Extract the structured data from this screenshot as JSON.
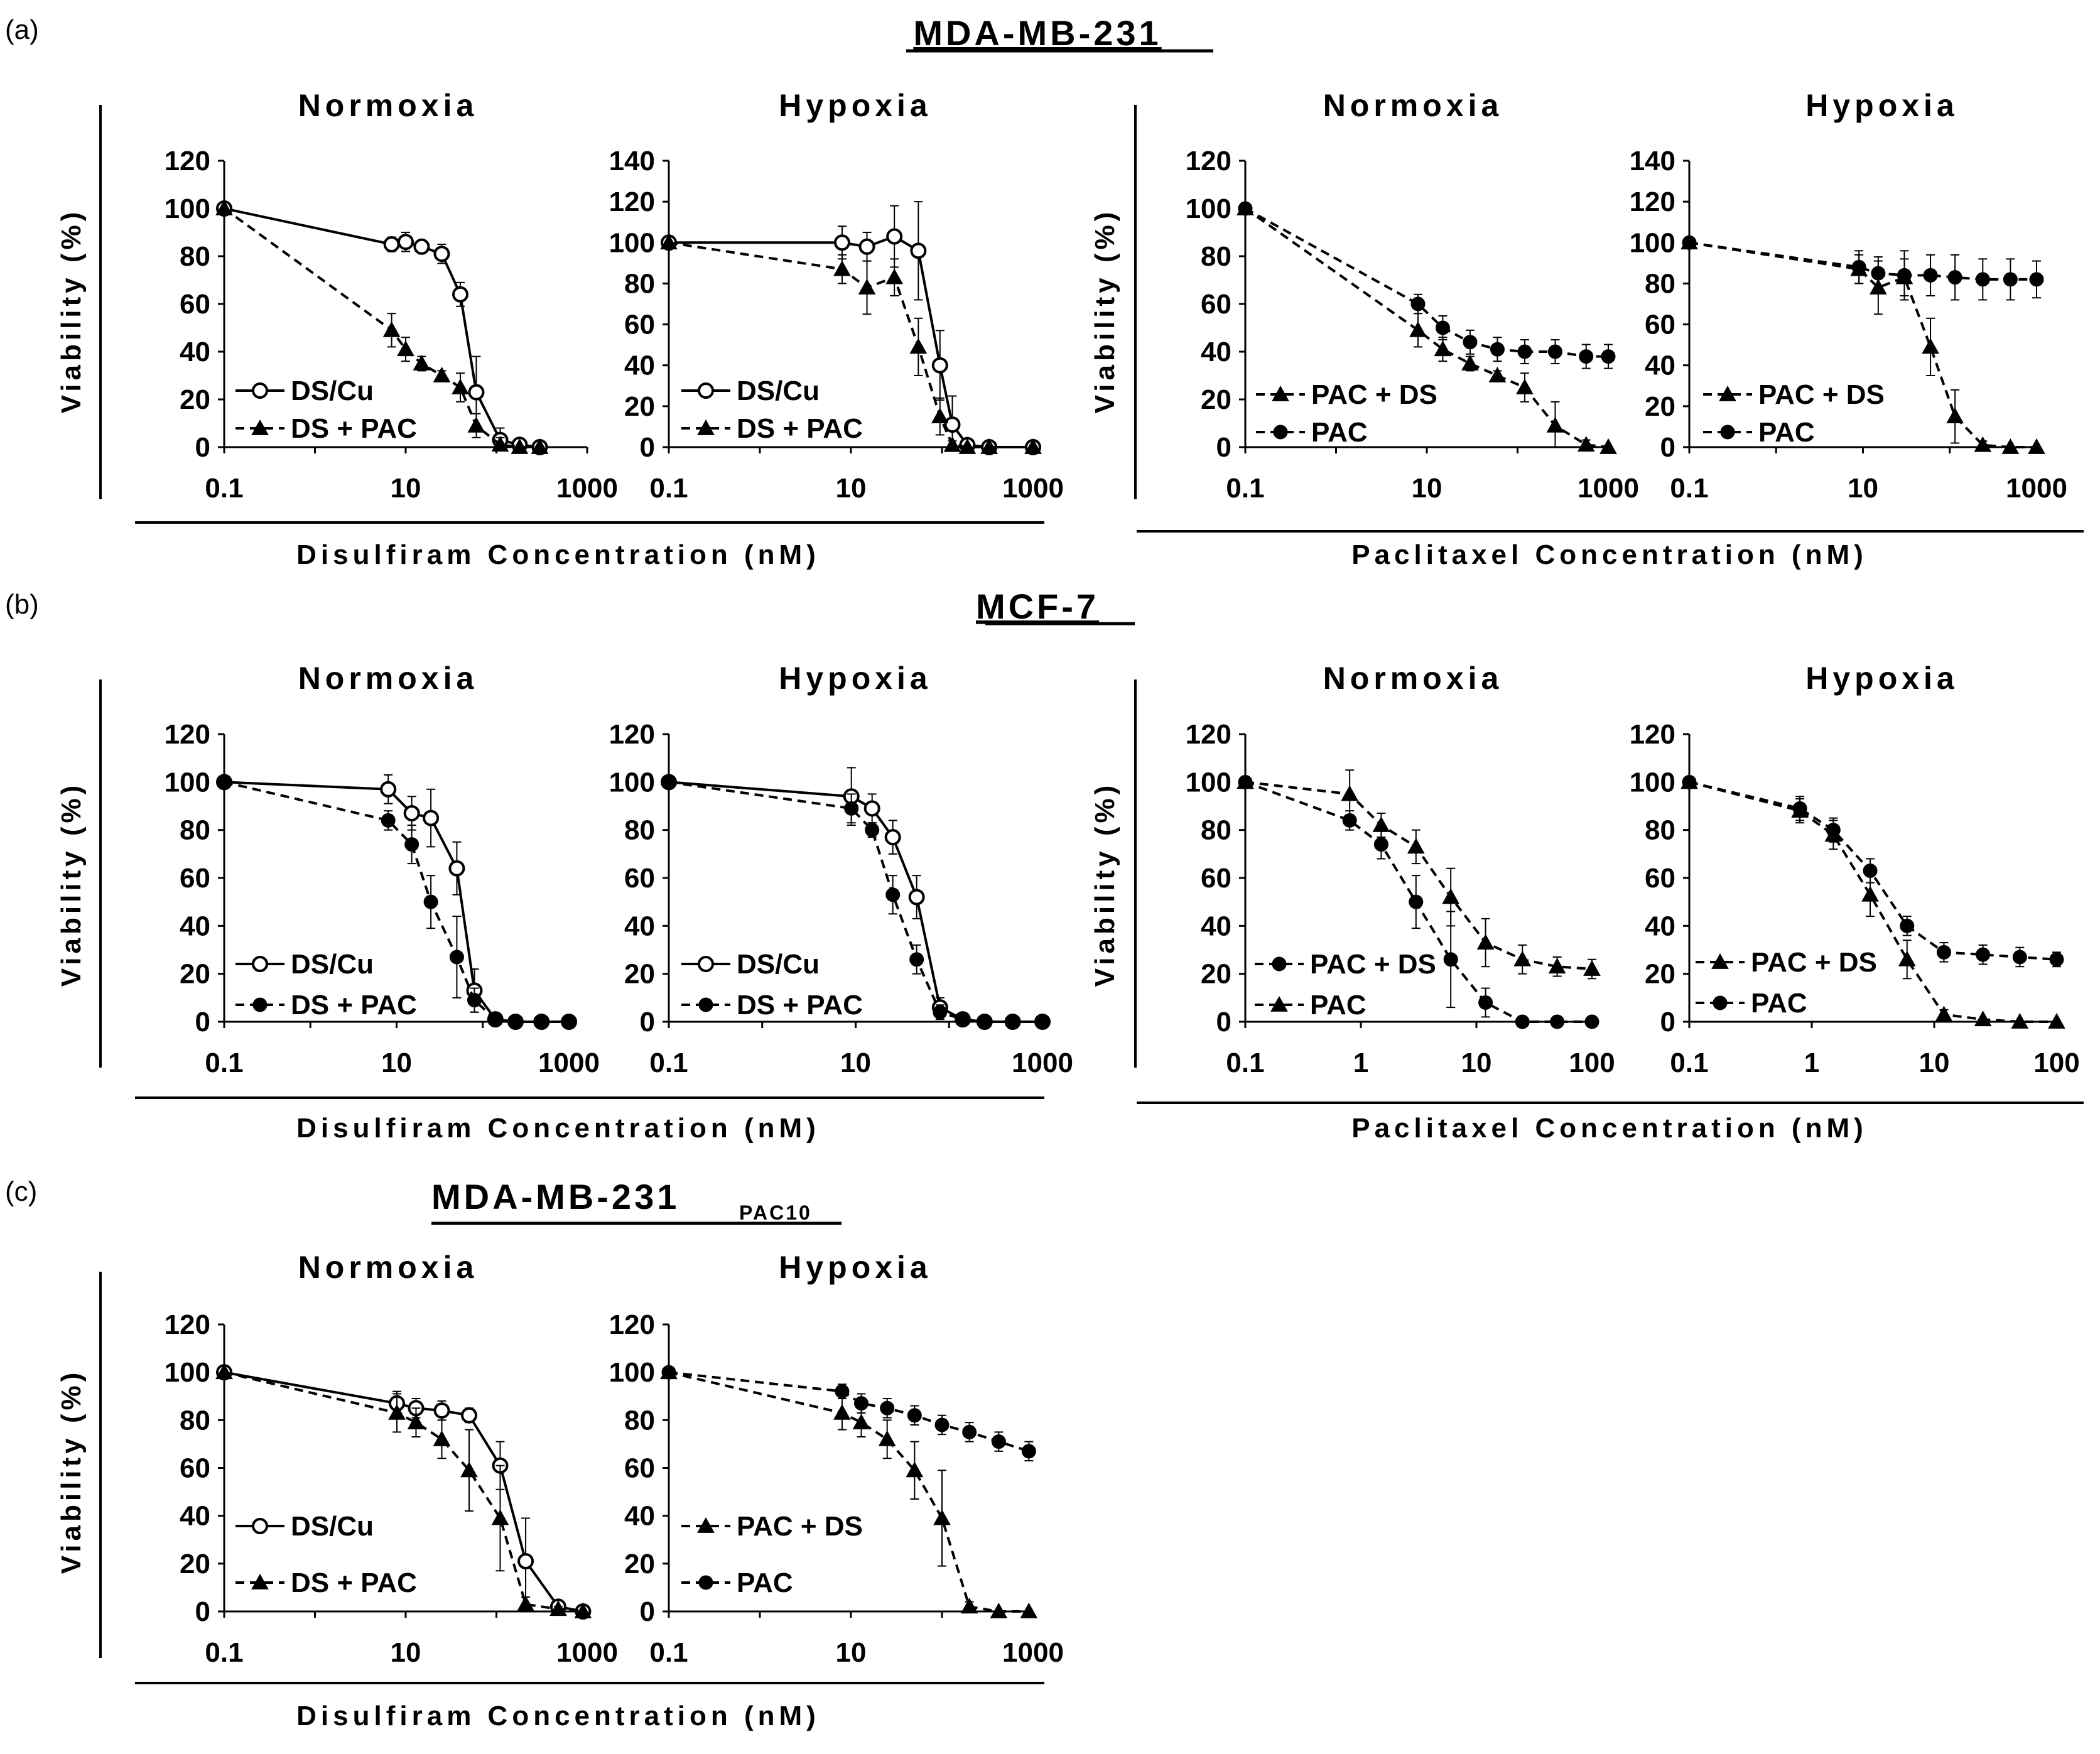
{
  "figure": {
    "labels": {
      "a": "(a)",
      "b": "(b)",
      "c": "(c)"
    },
    "rows": {
      "a": {
        "title": "MDA-MB-231",
        "subscript": ""
      },
      "b": {
        "title": "MCF-7",
        "subscript": ""
      },
      "c": {
        "title": "MDA-MB-231",
        "subscript": "PAC10"
      }
    },
    "y_axis_label": "Viability (%)",
    "x_axis_labels": {
      "ds": "Disulfiram Concentration (nM)",
      "pac": "Paclitaxel Concentration (nM)"
    },
    "conditions": {
      "normoxia": "Normoxia",
      "hypoxia": "Hypoxia"
    },
    "colors": {
      "ink": "#000000",
      "background": "#ffffff"
    }
  },
  "chart_data": [
    {
      "id": "a1",
      "type": "line",
      "title": "Normoxia",
      "xscale": "log",
      "xlim": [
        0.1,
        1000
      ],
      "xticks": [
        0.1,
        10,
        1000
      ],
      "xticklabels": [
        "0.1",
        "10",
        "1000"
      ],
      "ylim": [
        0,
        120
      ],
      "yticks": [
        0,
        20,
        40,
        60,
        80,
        100,
        120
      ],
      "series": [
        {
          "name": "DS/Cu",
          "marker": "open-circle",
          "dash": "solid",
          "x": [
            0.1,
            7,
            10,
            15,
            25,
            40,
            60,
            110,
            180,
            300
          ],
          "y": [
            100,
            85,
            86,
            84,
            81,
            64,
            23,
            3,
            1,
            0
          ],
          "err": [
            0,
            3,
            4,
            2,
            4,
            5,
            15,
            5,
            2,
            0
          ]
        },
        {
          "name": "DS + PAC",
          "marker": "filled-triangle",
          "dash": "dashed",
          "x": [
            0.1,
            7,
            10,
            15,
            25,
            40,
            60,
            110,
            180,
            300
          ],
          "y": [
            100,
            49,
            41,
            35,
            30,
            25,
            9,
            1,
            0,
            0
          ],
          "err": [
            0,
            7,
            5,
            3,
            2,
            6,
            5,
            3,
            0,
            0
          ]
        }
      ]
    },
    {
      "id": "a2",
      "type": "line",
      "title": "Hypoxia",
      "xscale": "log",
      "xlim": [
        0.1,
        1000
      ],
      "xticks": [
        0.1,
        10,
        1000
      ],
      "xticklabels": [
        "0.1",
        "10",
        "1000"
      ],
      "ylim": [
        0,
        140
      ],
      "yticks": [
        0,
        20,
        40,
        60,
        80,
        100,
        120,
        140
      ],
      "series": [
        {
          "name": "DS/Cu",
          "marker": "open-circle",
          "dash": "solid",
          "x": [
            0.1,
            8,
            15,
            30,
            55,
            95,
            130,
            190,
            330,
            1000
          ],
          "y": [
            100,
            100,
            98,
            103,
            96,
            40,
            11,
            1,
            0,
            0
          ],
          "err": [
            0,
            8,
            7,
            15,
            24,
            17,
            14,
            2,
            0,
            0
          ]
        },
        {
          "name": "DS + PAC",
          "marker": "filled-triangle",
          "dash": "dashed",
          "x": [
            0.1,
            8,
            15,
            30,
            55,
            95,
            130,
            190,
            330,
            1000
          ],
          "y": [
            100,
            87,
            78,
            83,
            49,
            15,
            1,
            0,
            0,
            0
          ],
          "err": [
            0,
            7,
            13,
            9,
            14,
            9,
            2,
            0,
            0,
            0
          ]
        }
      ]
    },
    {
      "id": "a3",
      "type": "line",
      "title": "Normoxia",
      "xscale": "log",
      "xlim": [
        0.1,
        1000
      ],
      "xticks": [
        0.1,
        10,
        1000
      ],
      "xticklabels": [
        "0.1",
        "10",
        "1000"
      ],
      "ylim": [
        0,
        120
      ],
      "yticks": [
        0,
        20,
        40,
        60,
        80,
        100,
        120
      ],
      "series": [
        {
          "name": "PAC + DS",
          "marker": "filled-triangle",
          "dash": "dashed",
          "x": [
            0.1,
            8,
            15,
            30,
            60,
            120,
            260,
            570,
            1000
          ],
          "y": [
            100,
            49,
            41,
            35,
            30,
            25,
            9,
            1,
            0
          ],
          "err": [
            0,
            7,
            5,
            3,
            2,
            6,
            10,
            2,
            0
          ]
        },
        {
          "name": "PAC",
          "marker": "filled-circle",
          "dash": "dashed",
          "x": [
            0.1,
            8,
            15,
            30,
            60,
            120,
            260,
            570,
            1000
          ],
          "y": [
            100,
            60,
            50,
            44,
            41,
            40,
            40,
            38,
            38
          ],
          "err": [
            0,
            4,
            5,
            5,
            5,
            5,
            5,
            5,
            5
          ]
        }
      ]
    },
    {
      "id": "a4",
      "type": "line",
      "title": "Hypoxia",
      "xscale": "log",
      "xlim": [
        0.1,
        1000
      ],
      "xticks": [
        0.1,
        10,
        1000
      ],
      "xticklabels": [
        "0.1",
        "10",
        "1000"
      ],
      "ylim": [
        0,
        140
      ],
      "yticks": [
        0,
        20,
        40,
        60,
        80,
        100,
        120,
        140
      ],
      "series": [
        {
          "name": "PAC + DS",
          "marker": "filled-triangle",
          "dash": "dashed",
          "x": [
            0.1,
            9,
            15,
            30,
            60,
            115,
            240,
            500,
            1000
          ],
          "y": [
            100,
            87,
            78,
            83,
            49,
            15,
            1,
            0,
            0
          ],
          "err": [
            0,
            7,
            13,
            9,
            14,
            13,
            2,
            0,
            0
          ]
        },
        {
          "name": "PAC",
          "marker": "filled-circle",
          "dash": "dashed",
          "x": [
            0.1,
            9,
            15,
            30,
            60,
            115,
            240,
            500,
            1000
          ],
          "y": [
            100,
            88,
            85,
            84,
            84,
            83,
            82,
            82,
            82
          ],
          "err": [
            0,
            8,
            8,
            12,
            10,
            11,
            10,
            10,
            9
          ]
        }
      ]
    },
    {
      "id": "b1",
      "type": "line",
      "title": "Normoxia",
      "xscale": "log",
      "xlim": [
        0.1,
        1000
      ],
      "xticks": [
        0.1,
        10,
        1000
      ],
      "xticklabels": [
        "0.1",
        "10",
        "1000"
      ],
      "ylim": [
        0,
        120
      ],
      "yticks": [
        0,
        20,
        40,
        60,
        80,
        100,
        120
      ],
      "series": [
        {
          "name": "DS/Cu",
          "marker": "open-circle",
          "dash": "solid",
          "x": [
            0.1,
            8,
            15,
            25,
            50,
            80,
            140,
            240,
            480,
            1000
          ],
          "y": [
            100,
            97,
            87,
            85,
            64,
            13,
            1,
            0,
            0,
            0
          ],
          "err": [
            0,
            6,
            7,
            12,
            11,
            9,
            2,
            0,
            0,
            0
          ]
        },
        {
          "name": "DS + PAC",
          "marker": "filled-circle",
          "dash": "dashed",
          "x": [
            0.1,
            8,
            15,
            25,
            50,
            80,
            140,
            240,
            480,
            1000
          ],
          "y": [
            100,
            84,
            74,
            50,
            27,
            9,
            1,
            0,
            0,
            0
          ],
          "err": [
            0,
            4,
            8,
            11,
            17,
            5,
            1,
            0,
            0,
            0
          ]
        }
      ]
    },
    {
      "id": "b2",
      "type": "line",
      "title": "Hypoxia",
      "xscale": "log",
      "xlim": [
        0.1,
        1000
      ],
      "xticks": [
        0.1,
        10,
        1000
      ],
      "xticklabels": [
        "0.1",
        "10",
        "1000"
      ],
      "ylim": [
        0,
        120
      ],
      "yticks": [
        0,
        20,
        40,
        60,
        80,
        100,
        120
      ],
      "series": [
        {
          "name": "DS/Cu",
          "marker": "open-circle",
          "dash": "solid",
          "x": [
            0.1,
            9,
            15,
            25,
            45,
            80,
            140,
            240,
            480,
            1000
          ],
          "y": [
            100,
            94,
            89,
            77,
            52,
            6,
            1,
            0,
            0,
            0
          ],
          "err": [
            0,
            12,
            6,
            7,
            9,
            4,
            1,
            0,
            0,
            0
          ]
        },
        {
          "name": "DS + PAC",
          "marker": "filled-circle",
          "dash": "dashed",
          "x": [
            0.1,
            9,
            15,
            25,
            45,
            80,
            140,
            240,
            480,
            1000
          ],
          "y": [
            100,
            89,
            80,
            53,
            26,
            4,
            1,
            0,
            0,
            0
          ],
          "err": [
            0,
            6,
            3,
            8,
            6,
            3,
            1,
            0,
            0,
            0
          ]
        }
      ]
    },
    {
      "id": "b3",
      "type": "line",
      "title": "Normoxia",
      "xscale": "log",
      "xlim": [
        0.1,
        100
      ],
      "xticks": [
        0.1,
        1,
        10,
        100
      ],
      "xticklabels": [
        "0.1",
        "1",
        "10",
        "100"
      ],
      "ylim": [
        0,
        120
      ],
      "yticks": [
        0,
        20,
        40,
        60,
        80,
        100,
        120
      ],
      "series": [
        {
          "name": "PAC + DS",
          "marker": "filled-circle",
          "dash": "dashed",
          "x": [
            0.1,
            0.8,
            1.5,
            3,
            6,
            12,
            25,
            50,
            100
          ],
          "y": [
            100,
            84,
            74,
            50,
            26,
            8,
            0,
            0,
            0
          ],
          "err": [
            0,
            4,
            6,
            11,
            20,
            6,
            1,
            0,
            0
          ]
        },
        {
          "name": "PAC",
          "marker": "filled-triangle",
          "dash": "dashed",
          "x": [
            0.1,
            0.8,
            1.5,
            3,
            6,
            12,
            25,
            50,
            100
          ],
          "y": [
            100,
            95,
            82,
            73,
            52,
            33,
            26,
            23,
            22
          ],
          "err": [
            0,
            10,
            5,
            7,
            12,
            10,
            6,
            4,
            4
          ]
        }
      ]
    },
    {
      "id": "b4",
      "type": "line",
      "title": "Hypoxia",
      "xscale": "log",
      "xlim": [
        0.1,
        100
      ],
      "xticks": [
        0.1,
        1,
        10,
        100
      ],
      "xticklabels": [
        "0.1",
        "1",
        "10",
        "100"
      ],
      "ylim": [
        0,
        120
      ],
      "yticks": [
        0,
        20,
        40,
        60,
        80,
        100,
        120
      ],
      "series": [
        {
          "name": "PAC + DS",
          "marker": "filled-triangle",
          "dash": "dashed",
          "x": [
            0.1,
            0.8,
            1.5,
            3,
            6,
            12,
            25,
            50,
            100
          ],
          "y": [
            100,
            88,
            78,
            53,
            26,
            3,
            1,
            0,
            0
          ],
          "err": [
            0,
            5,
            6,
            9,
            8,
            2,
            0,
            0,
            0
          ]
        },
        {
          "name": "PAC",
          "marker": "filled-circle",
          "dash": "dashed",
          "x": [
            0.1,
            0.8,
            1.5,
            3,
            6,
            12,
            25,
            50,
            100
          ],
          "y": [
            100,
            89,
            80,
            63,
            40,
            29,
            28,
            27,
            26
          ],
          "err": [
            0,
            5,
            5,
            5,
            4,
            4,
            4,
            4,
            3
          ]
        }
      ]
    },
    {
      "id": "c1",
      "type": "line",
      "title": "Normoxia",
      "xscale": "log",
      "xlim": [
        0.1,
        1000
      ],
      "xticks": [
        0.1,
        10,
        1000
      ],
      "xticklabels": [
        "0.1",
        "10",
        "1000"
      ],
      "ylim": [
        0,
        120
      ],
      "yticks": [
        0,
        20,
        40,
        60,
        80,
        100,
        120
      ],
      "series": [
        {
          "name": "DS/Cu",
          "marker": "open-circle",
          "dash": "solid",
          "x": [
            0.1,
            8,
            13,
            25,
            50,
            110,
            210,
            480,
            900
          ],
          "y": [
            100,
            87,
            85,
            84,
            82,
            61,
            21,
            2,
            0
          ],
          "err": [
            0,
            5,
            4,
            4,
            3,
            10,
            18,
            2,
            0
          ]
        },
        {
          "name": "DS + PAC",
          "marker": "filled-triangle",
          "dash": "dashed",
          "x": [
            0.1,
            8,
            13,
            25,
            50,
            110,
            210,
            480,
            900
          ],
          "y": [
            100,
            83,
            79,
            72,
            59,
            39,
            3,
            1,
            0
          ],
          "err": [
            0,
            8,
            6,
            8,
            17,
            22,
            3,
            1,
            0
          ]
        }
      ]
    },
    {
      "id": "c2",
      "type": "line",
      "title": "Hypoxia",
      "xscale": "log",
      "xlim": [
        0.1,
        1000
      ],
      "xticks": [
        0.1,
        10,
        1000
      ],
      "xticklabels": [
        "0.1",
        "10",
        "1000"
      ],
      "ylim": [
        0,
        120
      ],
      "yticks": [
        0,
        20,
        40,
        60,
        80,
        100,
        120
      ],
      "series": [
        {
          "name": "PAC + DS",
          "marker": "filled-triangle",
          "dash": "dashed",
          "x": [
            0.1,
            8,
            13,
            25,
            50,
            100,
            200,
            420,
            900
          ],
          "y": [
            100,
            83,
            79,
            72,
            59,
            39,
            2,
            0,
            0
          ],
          "err": [
            0,
            7,
            6,
            8,
            12,
            20,
            2,
            0,
            0
          ]
        },
        {
          "name": "PAC",
          "marker": "filled-circle",
          "dash": "dashed",
          "x": [
            0.1,
            8,
            13,
            25,
            50,
            100,
            200,
            420,
            900
          ],
          "y": [
            100,
            92,
            87,
            85,
            82,
            78,
            75,
            71,
            67
          ],
          "err": [
            0,
            3,
            4,
            4,
            4,
            4,
            4,
            4,
            4
          ]
        }
      ]
    }
  ]
}
